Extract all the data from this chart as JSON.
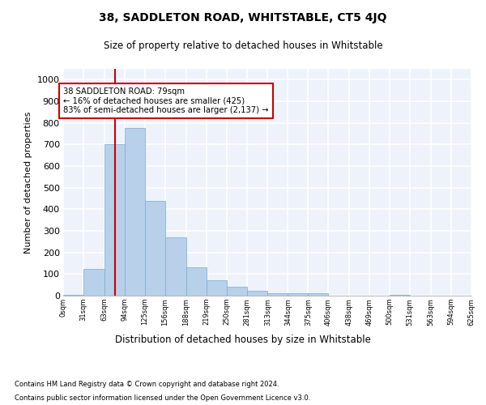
{
  "title": "38, SADDLETON ROAD, WHITSTABLE, CT5 4JQ",
  "subtitle": "Size of property relative to detached houses in Whitstable",
  "xlabel": "Distribution of detached houses by size in Whitstable",
  "ylabel": "Number of detached properties",
  "bar_color": "#b8d0ea",
  "bar_edge_color": "#7aaacf",
  "background_color": "#edf2fb",
  "grid_color": "#ffffff",
  "annotation_text": "38 SADDLETON ROAD: 79sqm\n← 16% of detached houses are smaller (425)\n83% of semi-detached houses are larger (2,137) →",
  "vline_x": 79,
  "vline_color": "#cc0000",
  "footer1": "Contains HM Land Registry data © Crown copyright and database right 2024.",
  "footer2": "Contains public sector information licensed under the Open Government Licence v3.0.",
  "bins": [
    0,
    31,
    63,
    94,
    125,
    156,
    188,
    219,
    250,
    281,
    313,
    344,
    375,
    406,
    438,
    469,
    500,
    531,
    563,
    594,
    625
  ],
  "bin_labels": [
    "0sqm",
    "31sqm",
    "63sqm",
    "94sqm",
    "125sqm",
    "156sqm",
    "188sqm",
    "219sqm",
    "250sqm",
    "281sqm",
    "313sqm",
    "344sqm",
    "375sqm",
    "406sqm",
    "438sqm",
    "469sqm",
    "500sqm",
    "531sqm",
    "563sqm",
    "594sqm",
    "625sqm"
  ],
  "bar_heights": [
    5,
    125,
    700,
    775,
    440,
    270,
    130,
    70,
    40,
    22,
    12,
    12,
    10,
    0,
    0,
    0,
    5,
    0,
    0,
    0
  ],
  "ylim": [
    0,
    1050
  ],
  "yticks": [
    0,
    100,
    200,
    300,
    400,
    500,
    600,
    700,
    800,
    900,
    1000
  ]
}
